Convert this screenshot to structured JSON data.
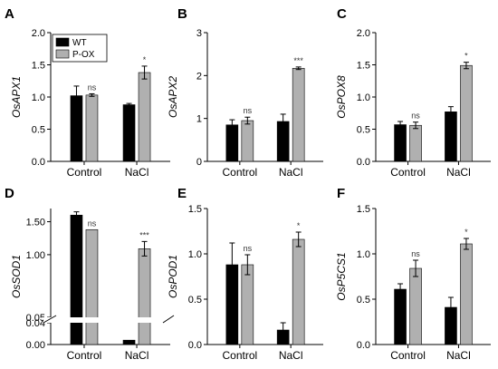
{
  "legend": [
    {
      "label": "WT",
      "color": "#000000"
    },
    {
      "label": "P-OX",
      "color": "#b0b0b0"
    }
  ],
  "chart_data": [
    {
      "panel": "A",
      "type": "bar",
      "ylabel": "OsAPX1",
      "categories": [
        "Control",
        "NaCl"
      ],
      "ylim": [
        0,
        2.0
      ],
      "yticks": [
        "0.0",
        "0.5",
        "1.0",
        "1.5",
        "2.0"
      ],
      "ytick_values": [
        0,
        0.5,
        1.0,
        1.5,
        2.0
      ],
      "series": [
        {
          "name": "WT",
          "values": [
            1.02,
            0.88
          ],
          "errors": [
            0.15,
            0.02
          ]
        },
        {
          "name": "P-OX",
          "values": [
            1.03,
            1.38
          ],
          "errors": [
            0.02,
            0.1
          ]
        }
      ],
      "annotations": [
        "ns",
        "*"
      ]
    },
    {
      "panel": "B",
      "type": "bar",
      "ylabel": "OsAPX2",
      "categories": [
        "Control",
        "NaCl"
      ],
      "ylim": [
        0,
        3
      ],
      "yticks": [
        "0",
        "1",
        "2",
        "3"
      ],
      "ytick_values": [
        0,
        1,
        2,
        3
      ],
      "series": [
        {
          "name": "WT",
          "values": [
            0.85,
            0.93
          ],
          "errors": [
            0.12,
            0.17
          ]
        },
        {
          "name": "P-OX",
          "values": [
            0.95,
            2.17
          ],
          "errors": [
            0.08,
            0.03
          ]
        }
      ],
      "annotations": [
        "ns",
        "***"
      ]
    },
    {
      "panel": "C",
      "type": "bar",
      "ylabel": "OsPOX8",
      "categories": [
        "Control",
        "NaCl"
      ],
      "ylim": [
        0,
        2.0
      ],
      "yticks": [
        "0.0",
        "0.5",
        "1.0",
        "1.5",
        "2.0"
      ],
      "ytick_values": [
        0,
        0.5,
        1.0,
        1.5,
        2.0
      ],
      "series": [
        {
          "name": "WT",
          "values": [
            0.57,
            0.77
          ],
          "errors": [
            0.05,
            0.08
          ]
        },
        {
          "name": "P-OX",
          "values": [
            0.56,
            1.49
          ],
          "errors": [
            0.05,
            0.05
          ]
        }
      ],
      "annotations": [
        "ns",
        "*"
      ]
    },
    {
      "panel": "D",
      "type": "bar",
      "ylabel": "OsSOD1",
      "categories": [
        "Control",
        "NaCl"
      ],
      "ylim": [
        0,
        1.7
      ],
      "axis_break": [
        0.04,
        0.05
      ],
      "yticks": [
        "0.00",
        "0.04",
        "0.05",
        "1.00",
        "1.50"
      ],
      "ytick_values": [
        0,
        0.04,
        0.05,
        1.0,
        1.5
      ],
      "series": [
        {
          "name": "WT",
          "values": [
            1.6,
            0.008
          ],
          "errors": [
            0.05,
            0.0
          ]
        },
        {
          "name": "P-OX",
          "values": [
            1.38,
            1.09
          ],
          "errors": [
            0.0,
            0.11
          ]
        }
      ],
      "annotations": [
        "ns",
        "***"
      ]
    },
    {
      "panel": "E",
      "type": "bar",
      "ylabel": "OsPOD1",
      "categories": [
        "Control",
        "NaCl"
      ],
      "ylim": [
        0,
        1.5
      ],
      "yticks": [
        "0.0",
        "0.5",
        "1.0",
        "1.5"
      ],
      "ytick_values": [
        0,
        0.5,
        1.0,
        1.5
      ],
      "series": [
        {
          "name": "WT",
          "values": [
            0.88,
            0.16
          ],
          "errors": [
            0.24,
            0.08
          ]
        },
        {
          "name": "P-OX",
          "values": [
            0.88,
            1.16
          ],
          "errors": [
            0.11,
            0.08
          ]
        }
      ],
      "annotations": [
        "ns",
        "*"
      ]
    },
    {
      "panel": "F",
      "type": "bar",
      "ylabel": "OsP5CS1",
      "categories": [
        "Control",
        "NaCl"
      ],
      "ylim": [
        0,
        1.5
      ],
      "yticks": [
        "0.0",
        "0.5",
        "1.0",
        "1.5"
      ],
      "ytick_values": [
        0,
        0.5,
        1.0,
        1.5
      ],
      "series": [
        {
          "name": "WT",
          "values": [
            0.61,
            0.41
          ],
          "errors": [
            0.06,
            0.11
          ]
        },
        {
          "name": "P-OX",
          "values": [
            0.84,
            1.11
          ],
          "errors": [
            0.09,
            0.06
          ]
        }
      ],
      "annotations": [
        "ns",
        "*"
      ]
    }
  ]
}
